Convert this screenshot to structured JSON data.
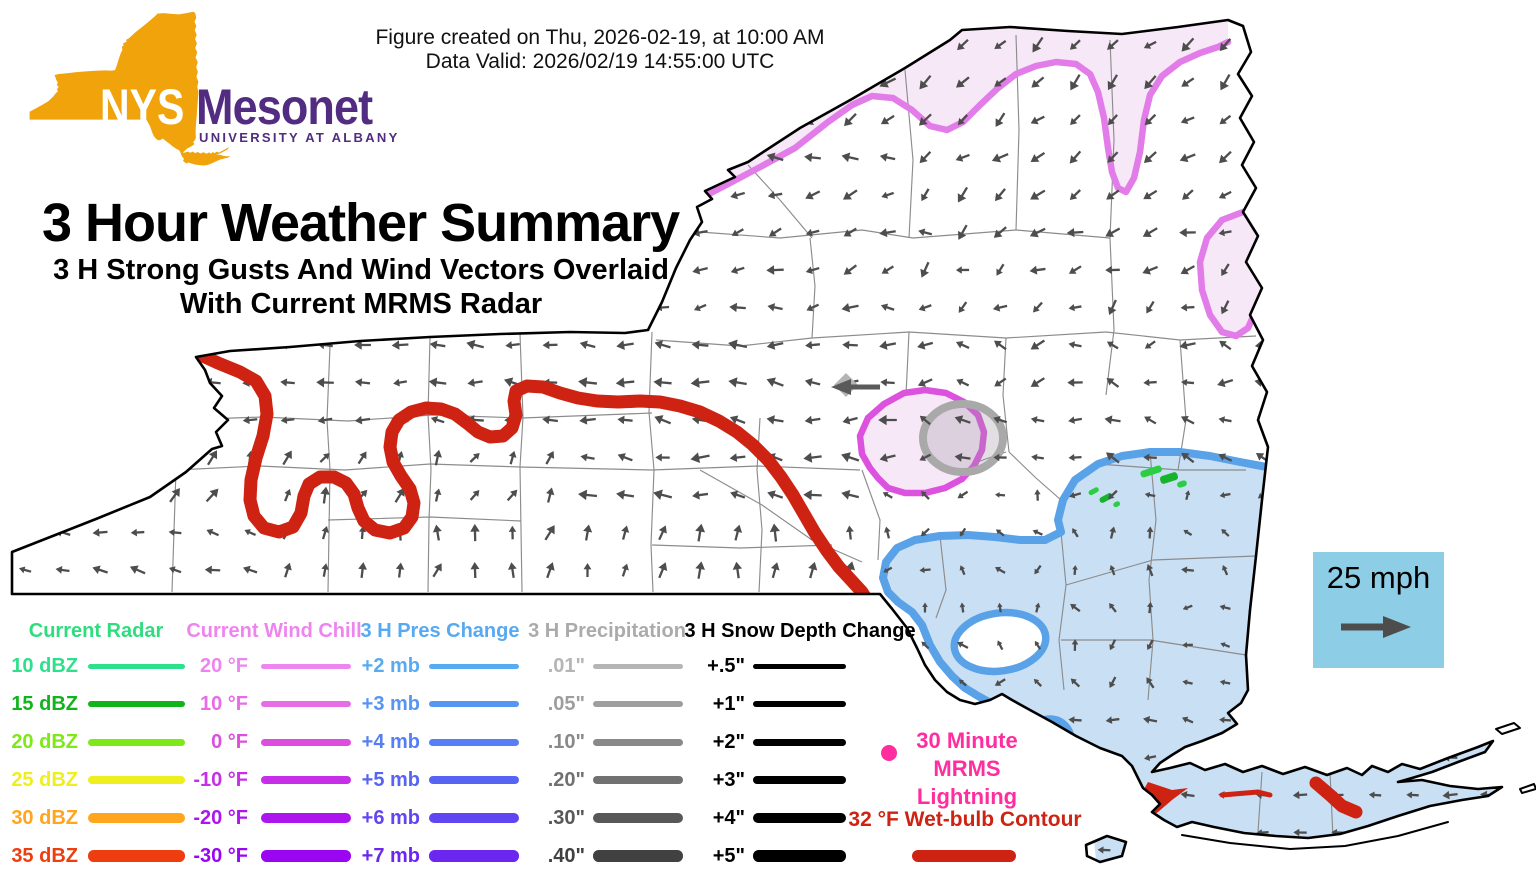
{
  "header": {
    "created_line": "Figure created on Thu, 2026-02-19, at 10:00 AM",
    "valid_line": "Data Valid: 2026/02/19 14:55:00 UTC"
  },
  "logo": {
    "nys": "NYS",
    "mesonet": "Mesonet",
    "university": "UNIVERSITY AT ALBANY"
  },
  "title": {
    "main": "3 Hour Weather Summary",
    "subtitle_line1": "3 H Strong Gusts And Wind Vectors Overlaid",
    "subtitle_line2": "With Current MRMS Radar"
  },
  "wind_reference": {
    "label": "25 mph"
  },
  "legend": {
    "columns": [
      {
        "id": "radar",
        "header": "Current Radar",
        "header_color": "#2EDD7E",
        "rows": [
          {
            "label": "10 dBZ",
            "color": "#2EE08C"
          },
          {
            "label": "15 dBZ",
            "color": "#12B41C"
          },
          {
            "label": "20 dBZ",
            "color": "#7FE817"
          },
          {
            "label": "25 dBZ",
            "color": "#EFEF20"
          },
          {
            "label": "30 dBZ",
            "color": "#FFA51E"
          },
          {
            "label": "35 dBZ",
            "color": "#EE3D0F"
          }
        ]
      },
      {
        "id": "wind-chill",
        "header": "Current Wind Chill",
        "header_color": "#EE85EE",
        "rows": [
          {
            "label": "20 °F",
            "color": "#EE85EE"
          },
          {
            "label": "10 °F",
            "color": "#E76DE7"
          },
          {
            "label": "0 °F",
            "color": "#DC4FDE"
          },
          {
            "label": "-10 °F",
            "color": "#C72EE8"
          },
          {
            "label": "-20 °F",
            "color": "#AC15EE"
          },
          {
            "label": "-30 °F",
            "color": "#9A05F2"
          }
        ]
      },
      {
        "id": "pres-change",
        "header": "3 H Pres Change",
        "header_color": "#57A9F2",
        "rows": [
          {
            "label": "+2 mb",
            "color": "#57ABF2"
          },
          {
            "label": "+3 mb",
            "color": "#5795F2"
          },
          {
            "label": "+4 mb",
            "color": "#577EF3"
          },
          {
            "label": "+5 mb",
            "color": "#5763F3"
          },
          {
            "label": "+6 mb",
            "color": "#5F46F0"
          },
          {
            "label": "+7 mb",
            "color": "#6B26F0"
          }
        ]
      },
      {
        "id": "precipitation",
        "header": "3 H Precipitation",
        "header_color": "#ABABAB",
        "rows": [
          {
            "label": ".01\"",
            "color": "#B5B5B5"
          },
          {
            "label": ".05\"",
            "color": "#9E9E9E"
          },
          {
            "label": ".10\"",
            "color": "#898989"
          },
          {
            "label": ".20\"",
            "color": "#717171"
          },
          {
            "label": ".30\"",
            "color": "#585858"
          },
          {
            "label": ".40\"",
            "color": "#414141"
          }
        ]
      },
      {
        "id": "snow-depth",
        "header": "3 H Snow Depth Change",
        "header_color": "#000000",
        "rows": [
          {
            "label": "+.5\"",
            "color": "#000000"
          },
          {
            "label": "+1\"",
            "color": "#000000"
          },
          {
            "label": "+2\"",
            "color": "#000000"
          },
          {
            "label": "+3\"",
            "color": "#000000"
          },
          {
            "label": "+4\"",
            "color": "#000000"
          },
          {
            "label": "+5\"",
            "color": "#000000"
          }
        ]
      }
    ],
    "lightning": {
      "label_lines": [
        "30 Minute",
        "MRMS",
        "Lightning"
      ],
      "color": "#FF2D9E"
    },
    "wetbulb": {
      "label": "32 °F Wet-bulb Contour",
      "color": "#CE2312"
    }
  },
  "map": {
    "region": "New York State",
    "contours_on_map": [
      {
        "name": "current-wind-chill-contour",
        "color": "#E27CE8"
      },
      {
        "name": "3h-pressure-change-contour",
        "color": "#5AA2E8"
      },
      {
        "name": "3h-precipitation-contour",
        "color": "#A9A9A9"
      },
      {
        "name": "32f-wet-bulb-contour",
        "color": "#CE2312"
      },
      {
        "name": "current-radar-echo",
        "color": "#2BCE43"
      },
      {
        "name": "strong-gust-marker",
        "color": "#5A5A5A"
      }
    ],
    "wind_zones": [
      [
        0,
        1536,
        0,
        876,
        180,
        25,
        1.0
      ],
      [
        560,
        1280,
        20,
        210,
        140,
        22,
        1.0
      ],
      [
        640,
        960,
        20,
        140,
        140,
        20,
        1.05
      ],
      [
        560,
        900,
        150,
        330,
        170,
        30,
        0.95
      ],
      [
        150,
        560,
        330,
        445,
        185,
        15,
        1.0
      ],
      [
        150,
        560,
        445,
        515,
        300,
        25,
        0.95
      ],
      [
        0,
        260,
        500,
        592,
        190,
        15,
        0.9
      ],
      [
        260,
        700,
        500,
        592,
        285,
        25,
        0.95
      ],
      [
        560,
        900,
        330,
        500,
        185,
        20,
        1.05
      ],
      [
        700,
        905,
        500,
        592,
        272,
        20,
        1.0
      ],
      [
        900,
        1280,
        210,
        345,
        152,
        45,
        0.95
      ],
      [
        900,
        1280,
        345,
        460,
        182,
        38,
        0.9
      ],
      [
        880,
        1280,
        460,
        700,
        200,
        85,
        0.7
      ],
      [
        1050,
        1280,
        690,
        790,
        185,
        20,
        0.8
      ],
      [
        1140,
        1520,
        778,
        872,
        181,
        8,
        0.85
      ]
    ]
  },
  "colors": {
    "page_bg": "#FFFFFF",
    "state_outline": "#000000",
    "county_line": "#8C8C8C",
    "pink_fill": "#F7E8F8",
    "pink_contour": "#E27CE8",
    "blob_contour": "#DC52DE",
    "blue_fill": "#C9DFF4",
    "blue_contour": "#5AA2E8",
    "gray_contour": "#A9A9A9",
    "red_contour": "#CE2312",
    "green_radar": "#2BCE43",
    "wind_arrow": "#4D4D4D",
    "wind_ref_box": "#8DCDE6",
    "logo_gold": "#F0A30A",
    "logo_purple": "#522C80",
    "lightning_pink": "#FF2D9E"
  }
}
